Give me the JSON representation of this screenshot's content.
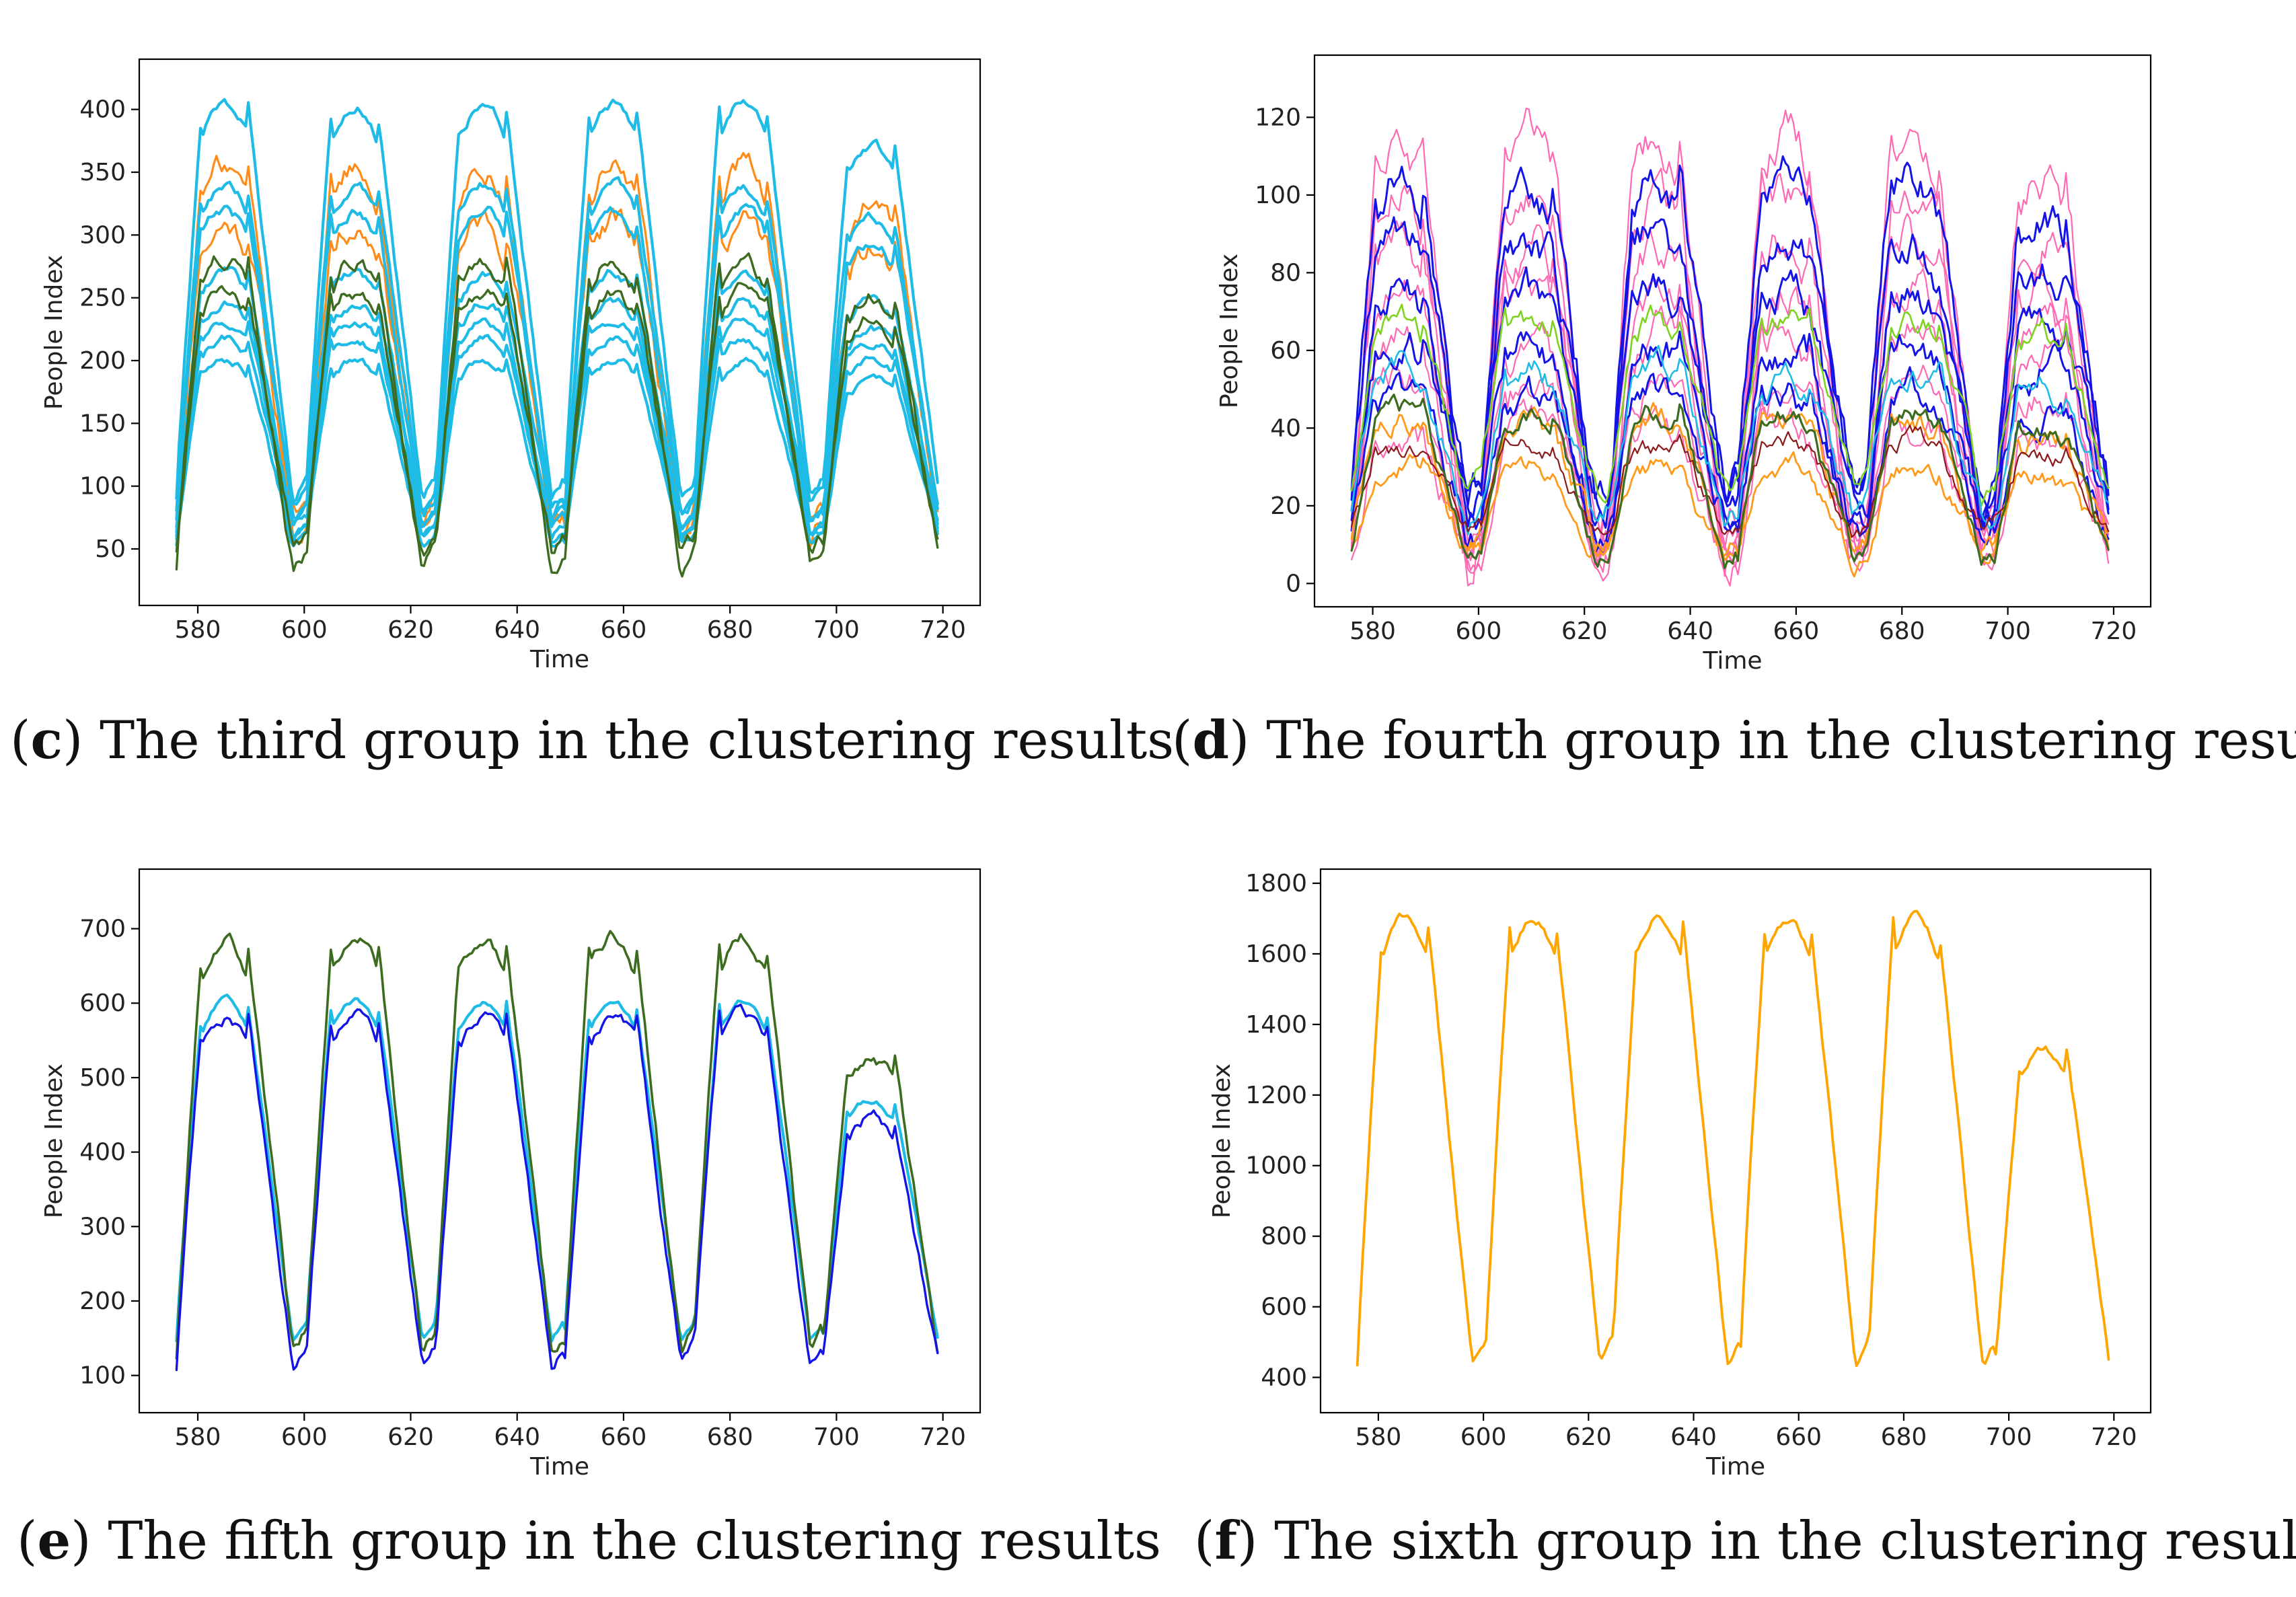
{
  "chart_data": [
    {
      "id": "c",
      "type": "line",
      "panel_letter": "c",
      "caption_text": "The third group in the clustering results",
      "xlabel": "Time",
      "ylabel": "People Index",
      "xlim": [
        569,
        727
      ],
      "ylim": [
        5,
        440
      ],
      "xticks": [
        580,
        600,
        620,
        640,
        660,
        680,
        700,
        720
      ],
      "yticks": [
        50,
        100,
        150,
        200,
        250,
        300,
        350,
        400
      ],
      "x_start": 576,
      "x_end": 719,
      "series": [
        {
          "name": "orange-1",
          "color": "#ff8c1a",
          "width": 3.2,
          "base": 60,
          "peak": 310,
          "noise": 16
        },
        {
          "name": "orange-2",
          "color": "#ff8c1a",
          "width": 3.2,
          "base": 45,
          "peak": 355,
          "noise": 14
        },
        {
          "name": "cyan-1",
          "color": "#1ebbe6",
          "width": 4.2,
          "base": 75,
          "peak": 405,
          "noise": 6
        },
        {
          "name": "cyan-2",
          "color": "#1ebbe6",
          "width": 4.2,
          "base": 68,
          "peak": 340,
          "noise": 6
        },
        {
          "name": "cyan-3",
          "color": "#1ebbe6",
          "width": 4.2,
          "base": 62,
          "peak": 320,
          "noise": 7
        },
        {
          "name": "cyan-4",
          "color": "#1ebbe6",
          "width": 4.2,
          "base": 58,
          "peak": 270,
          "noise": 6
        },
        {
          "name": "cyan-5",
          "color": "#1ebbe6",
          "width": 4.2,
          "base": 55,
          "peak": 245,
          "noise": 6
        },
        {
          "name": "cyan-6",
          "color": "#1ebbe6",
          "width": 4.2,
          "base": 52,
          "peak": 232,
          "noise": 5
        },
        {
          "name": "cyan-7",
          "color": "#1ebbe6",
          "width": 4.2,
          "base": 50,
          "peak": 218,
          "noise": 5
        },
        {
          "name": "cyan-8",
          "color": "#1ebbe6",
          "width": 4.2,
          "base": 46,
          "peak": 200,
          "noise": 5
        },
        {
          "name": "green-1",
          "color": "#3d6b1f",
          "width": 3.4,
          "base": 22,
          "peak": 280,
          "noise": 10
        },
        {
          "name": "green-2",
          "color": "#3d6b1f",
          "width": 3.4,
          "base": 38,
          "peak": 255,
          "noise": 9
        }
      ]
    },
    {
      "id": "d",
      "type": "line",
      "panel_letter": "d",
      "caption_text": "The fourth group in the clustering results",
      "xlabel": "Time",
      "ylabel": "People Index",
      "xlim": [
        569,
        727
      ],
      "ylim": [
        -6,
        136
      ],
      "xticks": [
        580,
        600,
        620,
        640,
        660,
        680,
        700,
        720
      ],
      "yticks": [
        0,
        20,
        40,
        60,
        80,
        100,
        120
      ],
      "x_start": 576,
      "x_end": 719,
      "series": [
        {
          "name": "pink-1",
          "color": "#ff69b4",
          "width": 2.2,
          "base": 2,
          "peak": 115,
          "noise": 8
        },
        {
          "name": "pink-2",
          "color": "#ff69b4",
          "width": 2.2,
          "base": 3,
          "peak": 100,
          "noise": 8
        },
        {
          "name": "pink-3",
          "color": "#ff69b4",
          "width": 2.2,
          "base": 4,
          "peak": 88,
          "noise": 8
        },
        {
          "name": "pink-4",
          "color": "#ff69b4",
          "width": 2.2,
          "base": 5,
          "peak": 76,
          "noise": 7
        },
        {
          "name": "pink-5",
          "color": "#ff69b4",
          "width": 2.2,
          "base": 6,
          "peak": 64,
          "noise": 7
        },
        {
          "name": "pink-6",
          "color": "#ff69b4",
          "width": 2.2,
          "base": 7,
          "peak": 52,
          "noise": 6
        },
        {
          "name": "pink-7",
          "color": "#ff69b4",
          "width": 2.2,
          "base": 3,
          "peak": 40,
          "noise": 6
        },
        {
          "name": "blue-1",
          "color": "#1414e6",
          "width": 3.0,
          "base": 18,
          "peak": 104,
          "noise": 8
        },
        {
          "name": "blue-2",
          "color": "#1414e6",
          "width": 3.0,
          "base": 16,
          "peak": 88,
          "noise": 8
        },
        {
          "name": "blue-3",
          "color": "#1414e6",
          "width": 3.0,
          "base": 14,
          "peak": 74,
          "noise": 7
        },
        {
          "name": "blue-4",
          "color": "#1414e6",
          "width": 3.0,
          "base": 12,
          "peak": 60,
          "noise": 7
        },
        {
          "name": "blue-5",
          "color": "#1414e6",
          "width": 3.0,
          "base": 10,
          "peak": 48,
          "noise": 6
        },
        {
          "name": "lime-1",
          "color": "#7ed321",
          "width": 2.6,
          "base": 20,
          "peak": 68,
          "noise": 5
        },
        {
          "name": "cyan-1",
          "color": "#1ebbe6",
          "width": 2.6,
          "base": 15,
          "peak": 55,
          "noise": 5
        },
        {
          "name": "orange-1",
          "color": "#ff9a1a",
          "width": 2.8,
          "base": 8,
          "peak": 42,
          "noise": 5
        },
        {
          "name": "orange-2",
          "color": "#ff9a1a",
          "width": 2.8,
          "base": 6,
          "peak": 30,
          "noise": 4
        },
        {
          "name": "darkred-1",
          "color": "#8b1a1a",
          "width": 2.2,
          "base": 12,
          "peak": 36,
          "noise": 4
        },
        {
          "name": "green-mean",
          "color": "#3d6b1f",
          "width": 3.2,
          "base": 5,
          "peak": 44,
          "noise": 4
        }
      ]
    },
    {
      "id": "e",
      "type": "line",
      "panel_letter": "e",
      "caption_text": "The fifth group in the clustering results",
      "xlabel": "Time",
      "ylabel": "People Index",
      "xlim": [
        569,
        727
      ],
      "ylim": [
        50,
        780
      ],
      "xticks": [
        580,
        600,
        620,
        640,
        660,
        680,
        700,
        720
      ],
      "yticks": [
        100,
        200,
        300,
        400,
        500,
        600,
        700
      ],
      "x_start": 576,
      "x_end": 719,
      "series": [
        {
          "name": "cyan",
          "color": "#1ebbe6",
          "width": 4.2,
          "base": 125,
          "peak": 605,
          "noise": 6
        },
        {
          "name": "green",
          "color": "#3d6b1f",
          "width": 3.6,
          "base": 100,
          "peak": 690,
          "noise": 14
        },
        {
          "name": "blue",
          "color": "#1414e6",
          "width": 3.4,
          "base": 88,
          "peak": 585,
          "noise": 12
        }
      ]
    },
    {
      "id": "f",
      "type": "line",
      "panel_letter": "f",
      "caption_text": "The sixth group in the clustering results",
      "xlabel": "Time",
      "ylabel": "People Index",
      "xlim": [
        569,
        727
      ],
      "ylim": [
        300,
        1840
      ],
      "xticks": [
        580,
        600,
        620,
        640,
        660,
        680,
        700,
        720
      ],
      "yticks": [
        400,
        600,
        800,
        1000,
        1200,
        1400,
        1600,
        1800
      ],
      "x_start": 576,
      "x_end": 719,
      "series": [
        {
          "name": "orange",
          "color": "#ffa500",
          "width": 3.8,
          "base": 370,
          "peak": 1700,
          "noise": 20
        }
      ]
    }
  ]
}
